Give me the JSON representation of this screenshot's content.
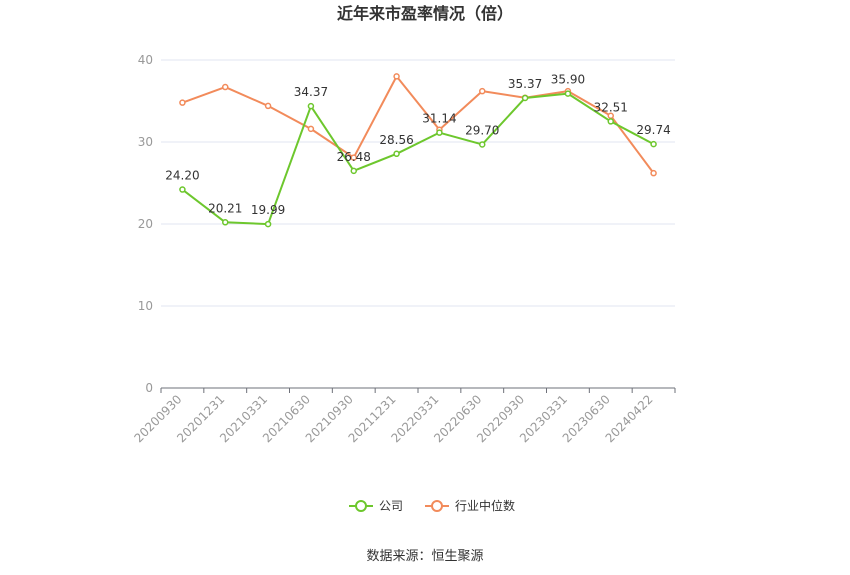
{
  "chart_data": {
    "type": "line",
    "title": "近年来市盈率情况（倍）",
    "categories": [
      "20200930",
      "20201231",
      "20210331",
      "20210630",
      "20210930",
      "20211231",
      "20220331",
      "20220630",
      "20220930",
      "20230331",
      "20230630",
      "20240422"
    ],
    "ylim": [
      0,
      40
    ],
    "yticks": [
      0,
      10,
      20,
      30,
      40
    ],
    "grid": true,
    "legend_position": "bottom",
    "series": [
      {
        "name": "公司",
        "color": "#6dc72d",
        "values": [
          24.2,
          20.21,
          19.99,
          34.37,
          26.48,
          28.56,
          31.14,
          29.7,
          35.37,
          35.9,
          32.51,
          29.74
        ],
        "labels": [
          "24.20",
          "20.21",
          "19.99",
          "34.37",
          "26.48",
          "28.56",
          "31.14",
          "29.70",
          "35.37",
          "35.90",
          "32.51",
          "29.74"
        ]
      },
      {
        "name": "行业中位数",
        "color": "#f28b5b",
        "values": [
          34.8,
          36.7,
          34.4,
          31.6,
          28.1,
          38.0,
          31.5,
          36.2,
          35.4,
          36.2,
          33.2,
          26.2
        ]
      }
    ],
    "source": "数据来源：恒生聚源"
  }
}
